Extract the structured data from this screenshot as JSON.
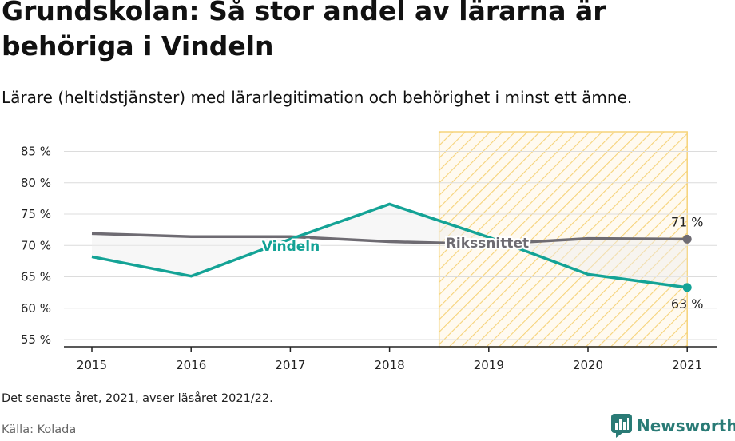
{
  "title": "Grundskolan: Så stor andel av lärarna är behöriga i Vindeln",
  "subtitle": "Lärare (heltidstjänster) med lärarlegitimation och behörighet i minst ett ämne.",
  "note": "Det senaste året, 2021, avser läsåret 2021/22.",
  "source": "Källa: Kolada",
  "logo": {
    "text": "Newsworthy",
    "icon": "newsworthy-logo-icon"
  },
  "colors": {
    "vindeln": "#14a396",
    "rikssnittet": "#6e6b72",
    "highlight_hatch": "#f6d37a",
    "grid": "#dcdcdc",
    "axis": "#222222",
    "logo": "#2a7b76"
  },
  "chart_data": {
    "type": "line",
    "x": [
      2015,
      2016,
      2017,
      2018,
      2019,
      2020,
      2021
    ],
    "x_tick_labels": [
      "2015",
      "2016",
      "2017",
      "2018",
      "2019",
      "2020",
      "2021"
    ],
    "y_tick_values": [
      55,
      60,
      65,
      70,
      75,
      80,
      85
    ],
    "y_tick_labels": [
      "55 %",
      "60 %",
      "65 %",
      "70 %",
      "75 %",
      "80 %",
      "85 %"
    ],
    "ylim": [
      54,
      87
    ],
    "grid": true,
    "highlight_range": [
      2018.5,
      2021
    ],
    "series": [
      {
        "name": "Rikssnittet",
        "values": [
          71.9,
          71.4,
          71.4,
          70.6,
          70.2,
          71.1,
          71.0
        ],
        "end_label": "71 %"
      },
      {
        "name": "Vindeln",
        "values": [
          68.2,
          65.1,
          71.0,
          76.6,
          71.3,
          65.4,
          63.3
        ],
        "end_label": "63 %"
      }
    ]
  }
}
